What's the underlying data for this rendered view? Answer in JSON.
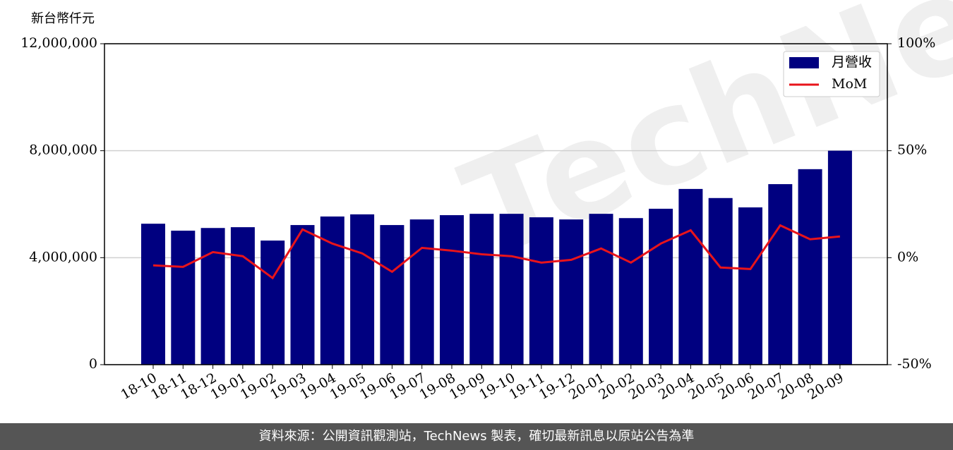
{
  "chart_data": {
    "type": "bar_line",
    "y_label": "新台幣仟元",
    "watermark": "TechNews",
    "footer": "資料來源：公開資訊觀測站，TechNews 製表，確切最新訊息以原站公告為準",
    "categories": [
      "18-10",
      "18-11",
      "18-12",
      "19-01",
      "19-02",
      "19-03",
      "19-04",
      "19-05",
      "19-06",
      "19-07",
      "19-08",
      "19-09",
      "19-10",
      "19-11",
      "19-12",
      "20-01",
      "20-02",
      "20-03",
      "20-04",
      "20-05",
      "20-06",
      "20-07",
      "20-08",
      "20-09"
    ],
    "series": [
      {
        "name": "月營收",
        "type": "bar",
        "color": "#000080",
        "values": [
          5270000,
          5010000,
          5110000,
          5140000,
          4640000,
          5220000,
          5540000,
          5620000,
          5220000,
          5430000,
          5590000,
          5640000,
          5640000,
          5510000,
          5430000,
          5640000,
          5480000,
          5830000,
          6570000,
          6230000,
          5880000,
          6750000,
          7310000,
          8000000
        ]
      },
      {
        "name": "MoM",
        "type": "line",
        "axis": "y2",
        "color": "#e8141b",
        "values": [
          -3.6,
          -4.3,
          2.6,
          0.7,
          -9.5,
          13.2,
          6.6,
          2.0,
          -6.6,
          4.6,
          3.3,
          1.6,
          0.7,
          -2.3,
          -1.0,
          4.3,
          -2.3,
          6.6,
          12.8,
          -4.6,
          -5.3,
          15.1,
          8.6,
          9.9
        ]
      }
    ],
    "ylim": [
      0,
      12000000
    ],
    "yticks": [
      0,
      {
        "value": 4000000,
        "label": "4,000,000"
      },
      {
        "value": 8000000,
        "label": "8,000,000"
      },
      {
        "value": 12000000,
        "label": "12,000,000"
      }
    ],
    "y2lim": [
      -50,
      100
    ],
    "y2ticks": [
      {
        "value": -50,
        "label": "-50%"
      },
      {
        "value": 0,
        "label": "0%"
      },
      {
        "value": 50,
        "label": "50%"
      },
      {
        "value": 100,
        "label": "100%"
      }
    ],
    "grid": true,
    "legend": "upper right"
  }
}
